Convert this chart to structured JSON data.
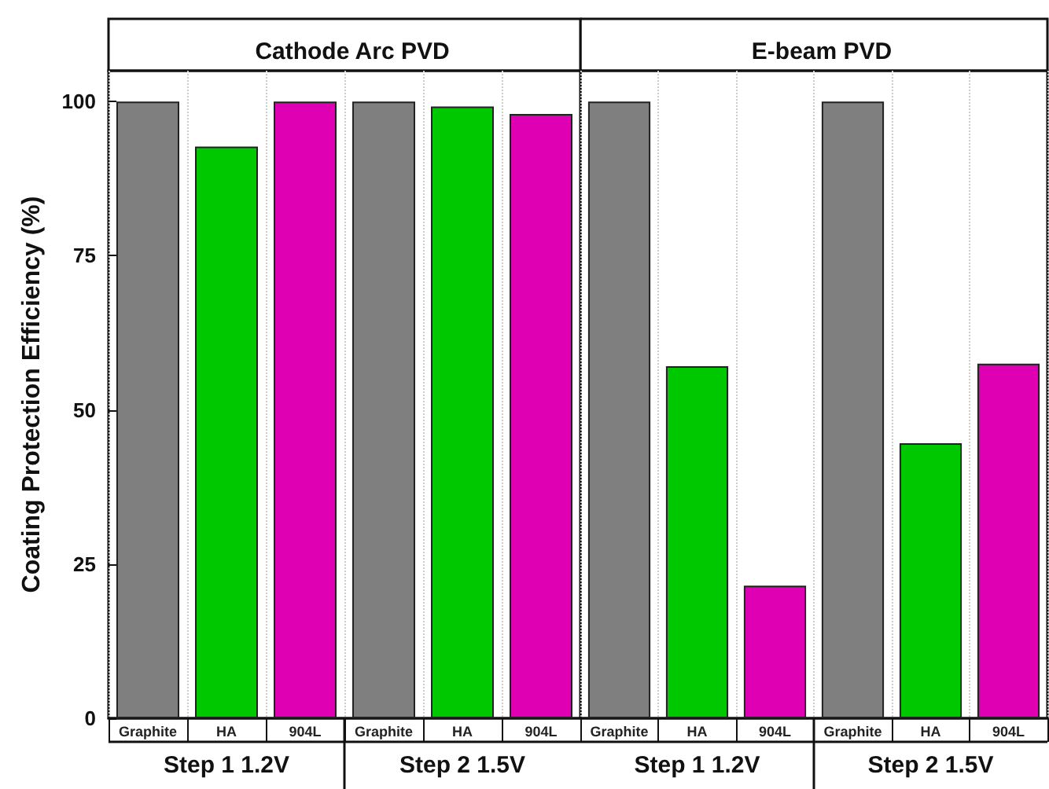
{
  "chart_data": [
    {
      "type": "bar",
      "title": "Cathode Arc PVD",
      "ylabel": "Coating Protection Efficiency (%)",
      "categories": [
        "Graphite",
        "HA",
        "904L",
        "Graphite",
        "HA",
        "904L"
      ],
      "values": [
        100,
        92.7,
        100,
        100,
        99.2,
        98.0
      ],
      "colors": [
        "#7f7f7f",
        "#00c800",
        "#e000b4",
        "#7f7f7f",
        "#00c800",
        "#e000b4"
      ],
      "annotations": [
        "Step 1 1.2V",
        "Step 2 1.5V"
      ],
      "ylim": [
        0,
        105
      ],
      "yticks": [
        0,
        25,
        50,
        75,
        100
      ],
      "grid": "x"
    },
    {
      "type": "bar",
      "title": "E-beam PVD",
      "categories": [
        "Graphite",
        "HA",
        "904L",
        "Graphite",
        "HA",
        "904L"
      ],
      "values": [
        100,
        57.1,
        21.5,
        100,
        44.6,
        57.5
      ],
      "colors": [
        "#7f7f7f",
        "#00c800",
        "#e000b4",
        "#7f7f7f",
        "#00c800",
        "#e000b4"
      ],
      "annotations": [
        "Step 1 1.2V",
        "Step 2 1.5V"
      ],
      "ylim": [
        0,
        105
      ],
      "yticks": [
        0,
        25,
        50,
        75,
        100
      ],
      "grid": "x",
      "tick_labels": "x"
    }
  ]
}
